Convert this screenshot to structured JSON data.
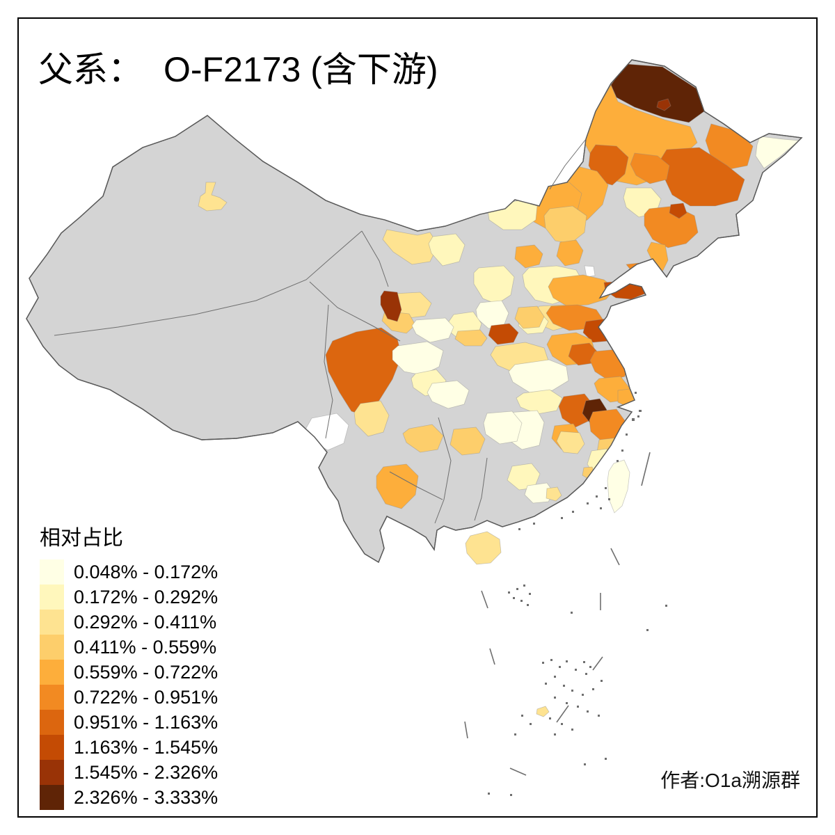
{
  "title": {
    "prefix": "父系：",
    "name": "O-F2173 (含下游)"
  },
  "legend": {
    "title": "相对占比",
    "classes": [
      {
        "label": "0.048% - 0.172%",
        "color": "#FFFFE5"
      },
      {
        "label": "0.172% - 0.292%",
        "color": "#FFF7BC"
      },
      {
        "label": "0.292% - 0.411%",
        "color": "#FEE391"
      },
      {
        "label": "0.411% - 0.559%",
        "color": "#FDCE6B"
      },
      {
        "label": "0.559% - 0.722%",
        "color": "#FDAE3B"
      },
      {
        "label": "0.722% - 0.951%",
        "color": "#F28A22"
      },
      {
        "label": "0.951% - 1.163%",
        "color": "#DC660F"
      },
      {
        "label": "1.163% - 1.545%",
        "color": "#C44B04"
      },
      {
        "label": "1.545% - 2.326%",
        "color": "#993306"
      },
      {
        "label": "2.326% - 3.333%",
        "color": "#5F2406"
      }
    ]
  },
  "attribution": "作者:O1a溯源群",
  "map": {
    "type": "choropleth",
    "subject": "China prefecture-level relative proportion of paternal lineage O-F2173",
    "na_color": "#D4D4D4",
    "boundary_color": "#5A5A5A",
    "white_fill": "#FFFFFF",
    "regions": [
      {
        "id": "hl-north",
        "class": 10
      },
      {
        "id": "heihe-spot",
        "class": 9
      },
      {
        "id": "hulunbuir",
        "class": 5
      },
      {
        "id": "hl-east",
        "class": 6
      },
      {
        "id": "hl-fareast",
        "class": 1
      },
      {
        "id": "jilin",
        "class": 7
      },
      {
        "id": "songyuan",
        "class": 6
      },
      {
        "id": "xingan",
        "class": 7
      },
      {
        "id": "tongliao",
        "class": 5
      },
      {
        "id": "nm-east",
        "class": 5
      },
      {
        "id": "harbin-pale",
        "class": 2
      },
      {
        "id": "liaoning",
        "class": 6
      },
      {
        "id": "liaoning-spot",
        "class": 8
      },
      {
        "id": "dalian",
        "class": 5
      },
      {
        "id": "chifeng",
        "class": 4
      },
      {
        "id": "xilingol",
        "class": 2
      },
      {
        "id": "nm-strip",
        "class": 3
      },
      {
        "id": "nm-strip2",
        "class": 2
      },
      {
        "id": "zhangjiakou",
        "class": 5
      },
      {
        "id": "beijing",
        "class": 5
      },
      {
        "id": "tianjin-white",
        "class": 0
      },
      {
        "id": "hebei",
        "class": 2
      },
      {
        "id": "hebei-s",
        "class": 3
      },
      {
        "id": "shanxi",
        "class": 2
      },
      {
        "id": "shanxi-s",
        "class": 1
      },
      {
        "id": "yuncheng",
        "class": 8
      },
      {
        "id": "shaanxi",
        "class": 2
      },
      {
        "id": "sanmenxia",
        "class": 4
      },
      {
        "id": "henan",
        "class": 3
      },
      {
        "id": "henan-n",
        "class": 2
      },
      {
        "id": "shandong-w",
        "class": 5
      },
      {
        "id": "weihai",
        "class": 8
      },
      {
        "id": "shandong-s",
        "class": 6
      },
      {
        "id": "lianyungang",
        "class": 8
      },
      {
        "id": "heze",
        "class": 4
      },
      {
        "id": "bohai-isles",
        "class": 6
      },
      {
        "id": "xinjiang-spot",
        "class": 3
      },
      {
        "id": "gansu-y1",
        "class": 3
      },
      {
        "id": "gansu-y2",
        "class": 4
      },
      {
        "id": "ningxia",
        "class": 9
      },
      {
        "id": "gansu-s",
        "class": 1
      },
      {
        "id": "anhui-n",
        "class": 5
      },
      {
        "id": "bengbu",
        "class": 7
      },
      {
        "id": "jiangsu",
        "class": 6
      },
      {
        "id": "jiangsu-s",
        "class": 5
      },
      {
        "id": "shanghai",
        "class": 5
      },
      {
        "id": "hubei",
        "class": 1
      },
      {
        "id": "hubei-s",
        "class": 2
      },
      {
        "id": "anhui-dark7",
        "class": 7
      },
      {
        "id": "anhui-dark10",
        "class": 10
      },
      {
        "id": "anhui-dark8",
        "class": 8
      },
      {
        "id": "zhejiang",
        "class": 6
      },
      {
        "id": "zhejiang-s",
        "class": 4
      },
      {
        "id": "jiangxi-orange",
        "class": 5
      },
      {
        "id": "jiangxi-pale",
        "class": 1
      },
      {
        "id": "fujian-nw",
        "class": 3
      },
      {
        "id": "fujian-e",
        "class": 2
      },
      {
        "id": "xiamen",
        "class": 4
      },
      {
        "id": "ganzi",
        "class": 7
      },
      {
        "id": "liangshan",
        "class": 3
      },
      {
        "id": "chengdu",
        "class": 1
      },
      {
        "id": "chengdu2",
        "class": 2
      },
      {
        "id": "chongqing",
        "class": 1
      },
      {
        "id": "guizhou-a",
        "class": 4
      },
      {
        "id": "guizhou-b",
        "class": 4
      },
      {
        "id": "yunnan-orange",
        "class": 5
      },
      {
        "id": "yunnan-white",
        "class": 0
      },
      {
        "id": "hunan",
        "class": 1
      },
      {
        "id": "chenzhou",
        "class": 2
      },
      {
        "id": "guangdong-pale",
        "class": 1
      },
      {
        "id": "guangdong-orange",
        "class": 3
      },
      {
        "id": "hainan",
        "class": 3
      },
      {
        "id": "taiwan",
        "class": 1
      },
      {
        "id": "scs-islet",
        "class": 3
      }
    ]
  }
}
